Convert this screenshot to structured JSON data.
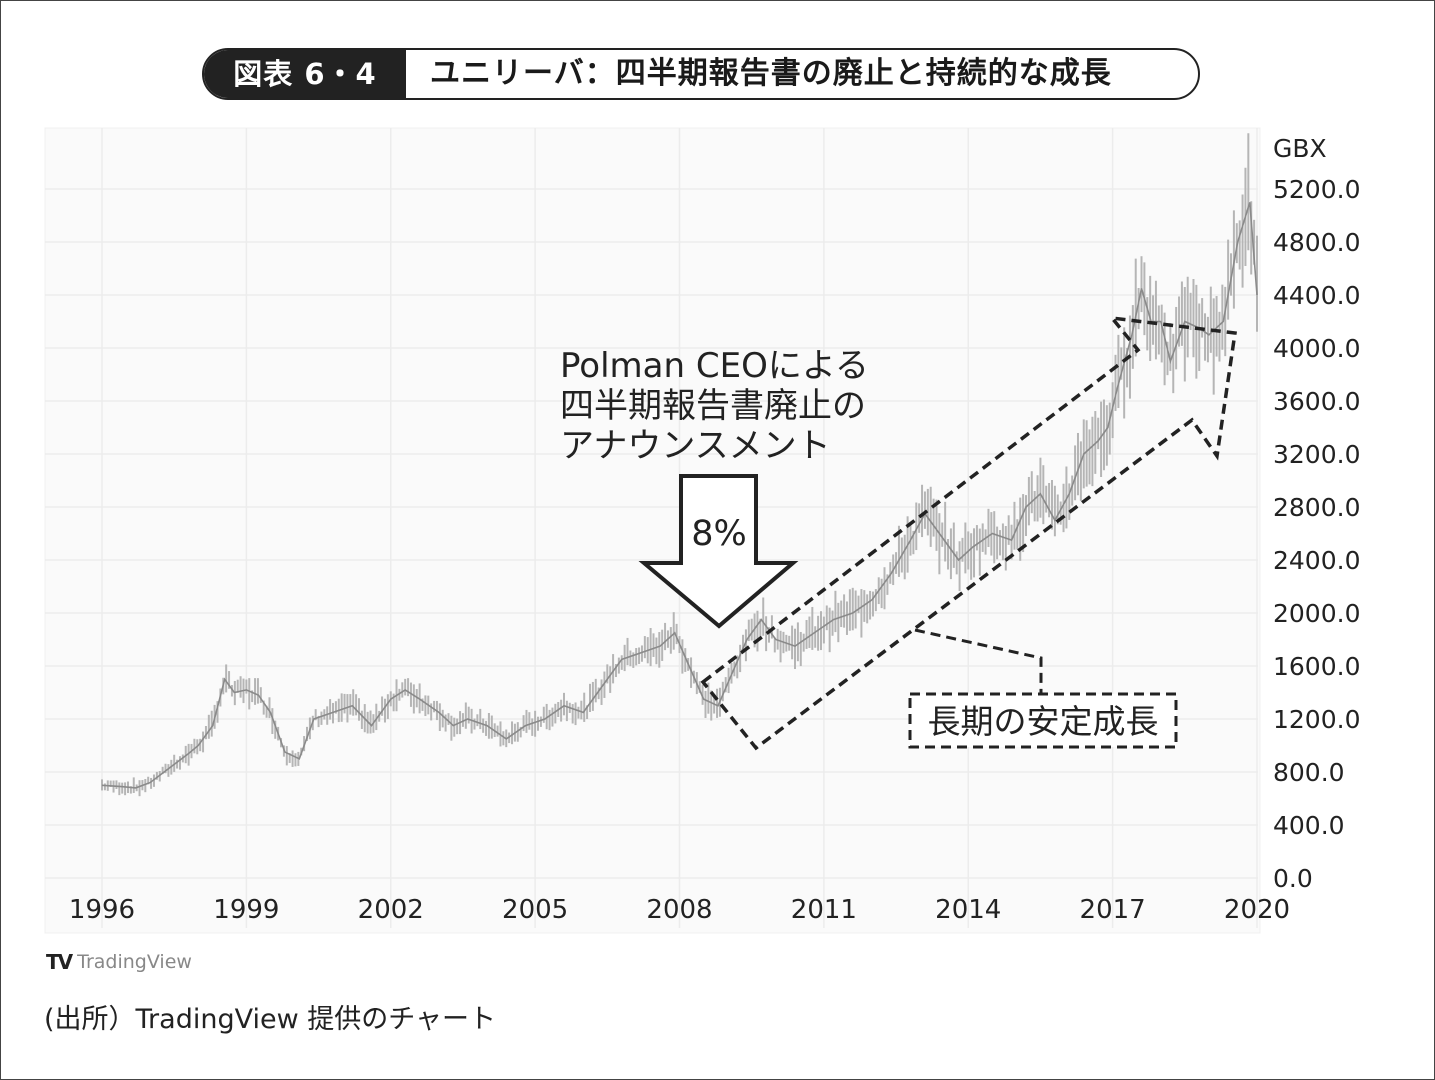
{
  "title": {
    "tag": "図表 6・4",
    "text": "ユニリーバ：四半期報告書の廃止と持続的な成長"
  },
  "chart_data": {
    "type": "line",
    "unit_label": "GBX",
    "x_ticks": [
      "1996",
      "1999",
      "2002",
      "2005",
      "2008",
      "2011",
      "2014",
      "2017",
      "2020"
    ],
    "x_range": [
      1995.45,
      2020.0
    ],
    "y_ticks": [
      0,
      400,
      800,
      1200,
      1600,
      2000,
      2400,
      2800,
      3200,
      3600,
      4000,
      4400,
      4800,
      5200
    ],
    "y_tick_labels": [
      "0.0",
      "400.0",
      "800.0",
      "1200.0",
      "1600.0",
      "2000.0",
      "2400.0",
      "2800.0",
      "3200.0",
      "3600.0",
      "4000.0",
      "4400.0",
      "4800.0",
      "5200.0"
    ],
    "ylim": [
      0,
      5500
    ],
    "y_axis_position": "right",
    "grid": true,
    "series": [
      {
        "x": [
          1996.0,
          1996.4,
          1996.7,
          1997.0,
          1997.4,
          1997.8,
          1998.0,
          1998.3,
          1998.55,
          1998.75,
          1999.0,
          1999.25,
          1999.5,
          1999.8,
          2000.1,
          2000.4,
          2000.8,
          2001.2,
          2001.6,
          2002.0,
          2002.3,
          2002.6,
          2003.0,
          2003.3,
          2003.6,
          2004.0,
          2004.4,
          2004.8,
          2005.2,
          2005.6,
          2006.0,
          2006.4,
          2006.8,
          2007.2,
          2007.6,
          2007.9,
          2008.2,
          2008.5,
          2008.8,
          2009.1,
          2009.4,
          2009.7,
          2010.0,
          2010.4,
          2010.8,
          2011.2,
          2011.6,
          2012.0,
          2012.4,
          2012.8,
          2013.1,
          2013.4,
          2013.8,
          2014.1,
          2014.5,
          2014.9,
          2015.2,
          2015.5,
          2015.8,
          2016.1,
          2016.4,
          2016.7,
          2016.9,
          2017.1,
          2017.4,
          2017.6,
          2017.8,
          2018.0,
          2018.2,
          2018.5,
          2018.8,
          2019.0,
          2019.3,
          2019.6,
          2019.85,
          2020.0
        ],
        "values": [
          700,
          690,
          680,
          720,
          830,
          940,
          1000,
          1150,
          1500,
          1400,
          1420,
          1380,
          1250,
          950,
          900,
          1200,
          1250,
          1300,
          1150,
          1350,
          1420,
          1350,
          1250,
          1150,
          1200,
          1150,
          1050,
          1150,
          1200,
          1300,
          1250,
          1450,
          1650,
          1700,
          1750,
          1850,
          1600,
          1350,
          1300,
          1550,
          1800,
          1950,
          1800,
          1750,
          1850,
          1950,
          2000,
          2100,
          2300,
          2550,
          2750,
          2600,
          2400,
          2500,
          2600,
          2550,
          2800,
          2900,
          2700,
          2900,
          3200,
          3300,
          3400,
          3700,
          4100,
          4450,
          4200,
          4200,
          3900,
          4200,
          4150,
          4100,
          4200,
          4800,
          5100,
          4400
        ]
      }
    ],
    "annotations": {
      "announcement": [
        "Polman CEOによる",
        "四半期報告書廃止の",
        "アナウンスメント"
      ],
      "arrow_label": "8%",
      "growth_label": "長期の安定成長"
    }
  },
  "footer": {
    "tradingview_mark": "TV",
    "tradingview_text": "TradingView",
    "source": "(出所）TradingView 提供のチャート"
  }
}
